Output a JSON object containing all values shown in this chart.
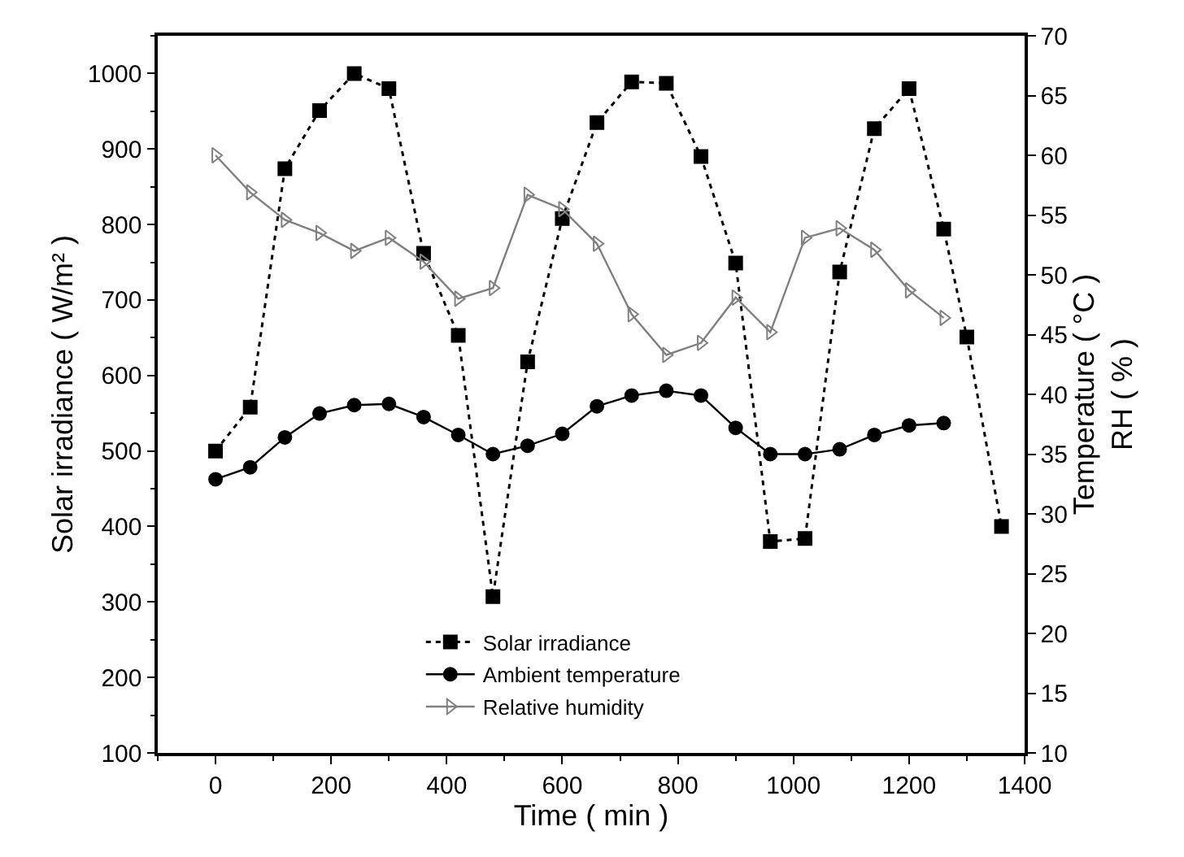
{
  "chart_data": {
    "type": "line",
    "xlabel": "Time ( min )",
    "ylabel": "Solar irradiance ( W/m² )",
    "y2label": "Temperature ( °C )\nRH ( % )",
    "xlim": [
      -100,
      1400
    ],
    "xticks": [
      0,
      200,
      400,
      600,
      800,
      1000,
      1200,
      1400
    ],
    "ylim": [
      100,
      1050
    ],
    "yticks": [
      100,
      200,
      300,
      400,
      500,
      600,
      700,
      800,
      900,
      1000
    ],
    "y2lim": [
      10,
      70
    ],
    "y2ticks": [
      10,
      15,
      20,
      25,
      30,
      35,
      40,
      45,
      50,
      55,
      60,
      65,
      70
    ],
    "legend": "bottom",
    "series": [
      {
        "name": "Solar irradiance",
        "color": "#000000",
        "marker": "square",
        "line_style": "dotted",
        "x": [
          0,
          60,
          120,
          180,
          240,
          300,
          360,
          420,
          480,
          540,
          600,
          660,
          720,
          780,
          840,
          900,
          960,
          1020,
          1080,
          1140,
          1200,
          1260,
          1300,
          1360
        ],
        "values": [
          500,
          558,
          874,
          951,
          1000,
          980,
          762,
          653,
          307,
          618,
          808,
          935,
          989,
          987,
          890,
          749,
          380,
          384,
          737,
          927,
          980,
          794,
          651,
          400
        ]
      },
      {
        "name": "Ambient temperature",
        "color": "#000000",
        "marker": "circle",
        "line_style": "solid",
        "axis": "y2",
        "x": [
          0,
          60,
          120,
          180,
          240,
          300,
          360,
          420,
          480,
          540,
          600,
          660,
          720,
          780,
          840,
          900,
          960,
          1020,
          1080,
          1140,
          1200,
          1260
        ],
        "values": [
          32.9,
          33.9,
          36.4,
          38.4,
          39.1,
          39.2,
          38.1,
          36.6,
          35.0,
          35.7,
          36.7,
          39.0,
          39.9,
          40.3,
          39.9,
          37.2,
          35.0,
          35.0,
          35.4,
          36.6,
          37.4,
          37.6
        ]
      },
      {
        "name": "Relative humidity",
        "color": "#808080",
        "marker": "triangle",
        "line_style": "solid",
        "axis": "y2",
        "x": [
          0,
          60,
          120,
          180,
          240,
          300,
          360,
          420,
          480,
          540,
          600,
          660,
          720,
          780,
          840,
          900,
          960,
          1020,
          1080,
          1140,
          1200,
          1260
        ],
        "values": [
          60.0,
          56.9,
          54.6,
          53.5,
          52.0,
          53.1,
          51.1,
          48.0,
          48.9,
          56.7,
          55.5,
          52.6,
          46.7,
          43.3,
          44.3,
          48.1,
          45.2,
          53.1,
          53.9,
          52.1,
          48.7,
          46.4
        ]
      }
    ]
  }
}
